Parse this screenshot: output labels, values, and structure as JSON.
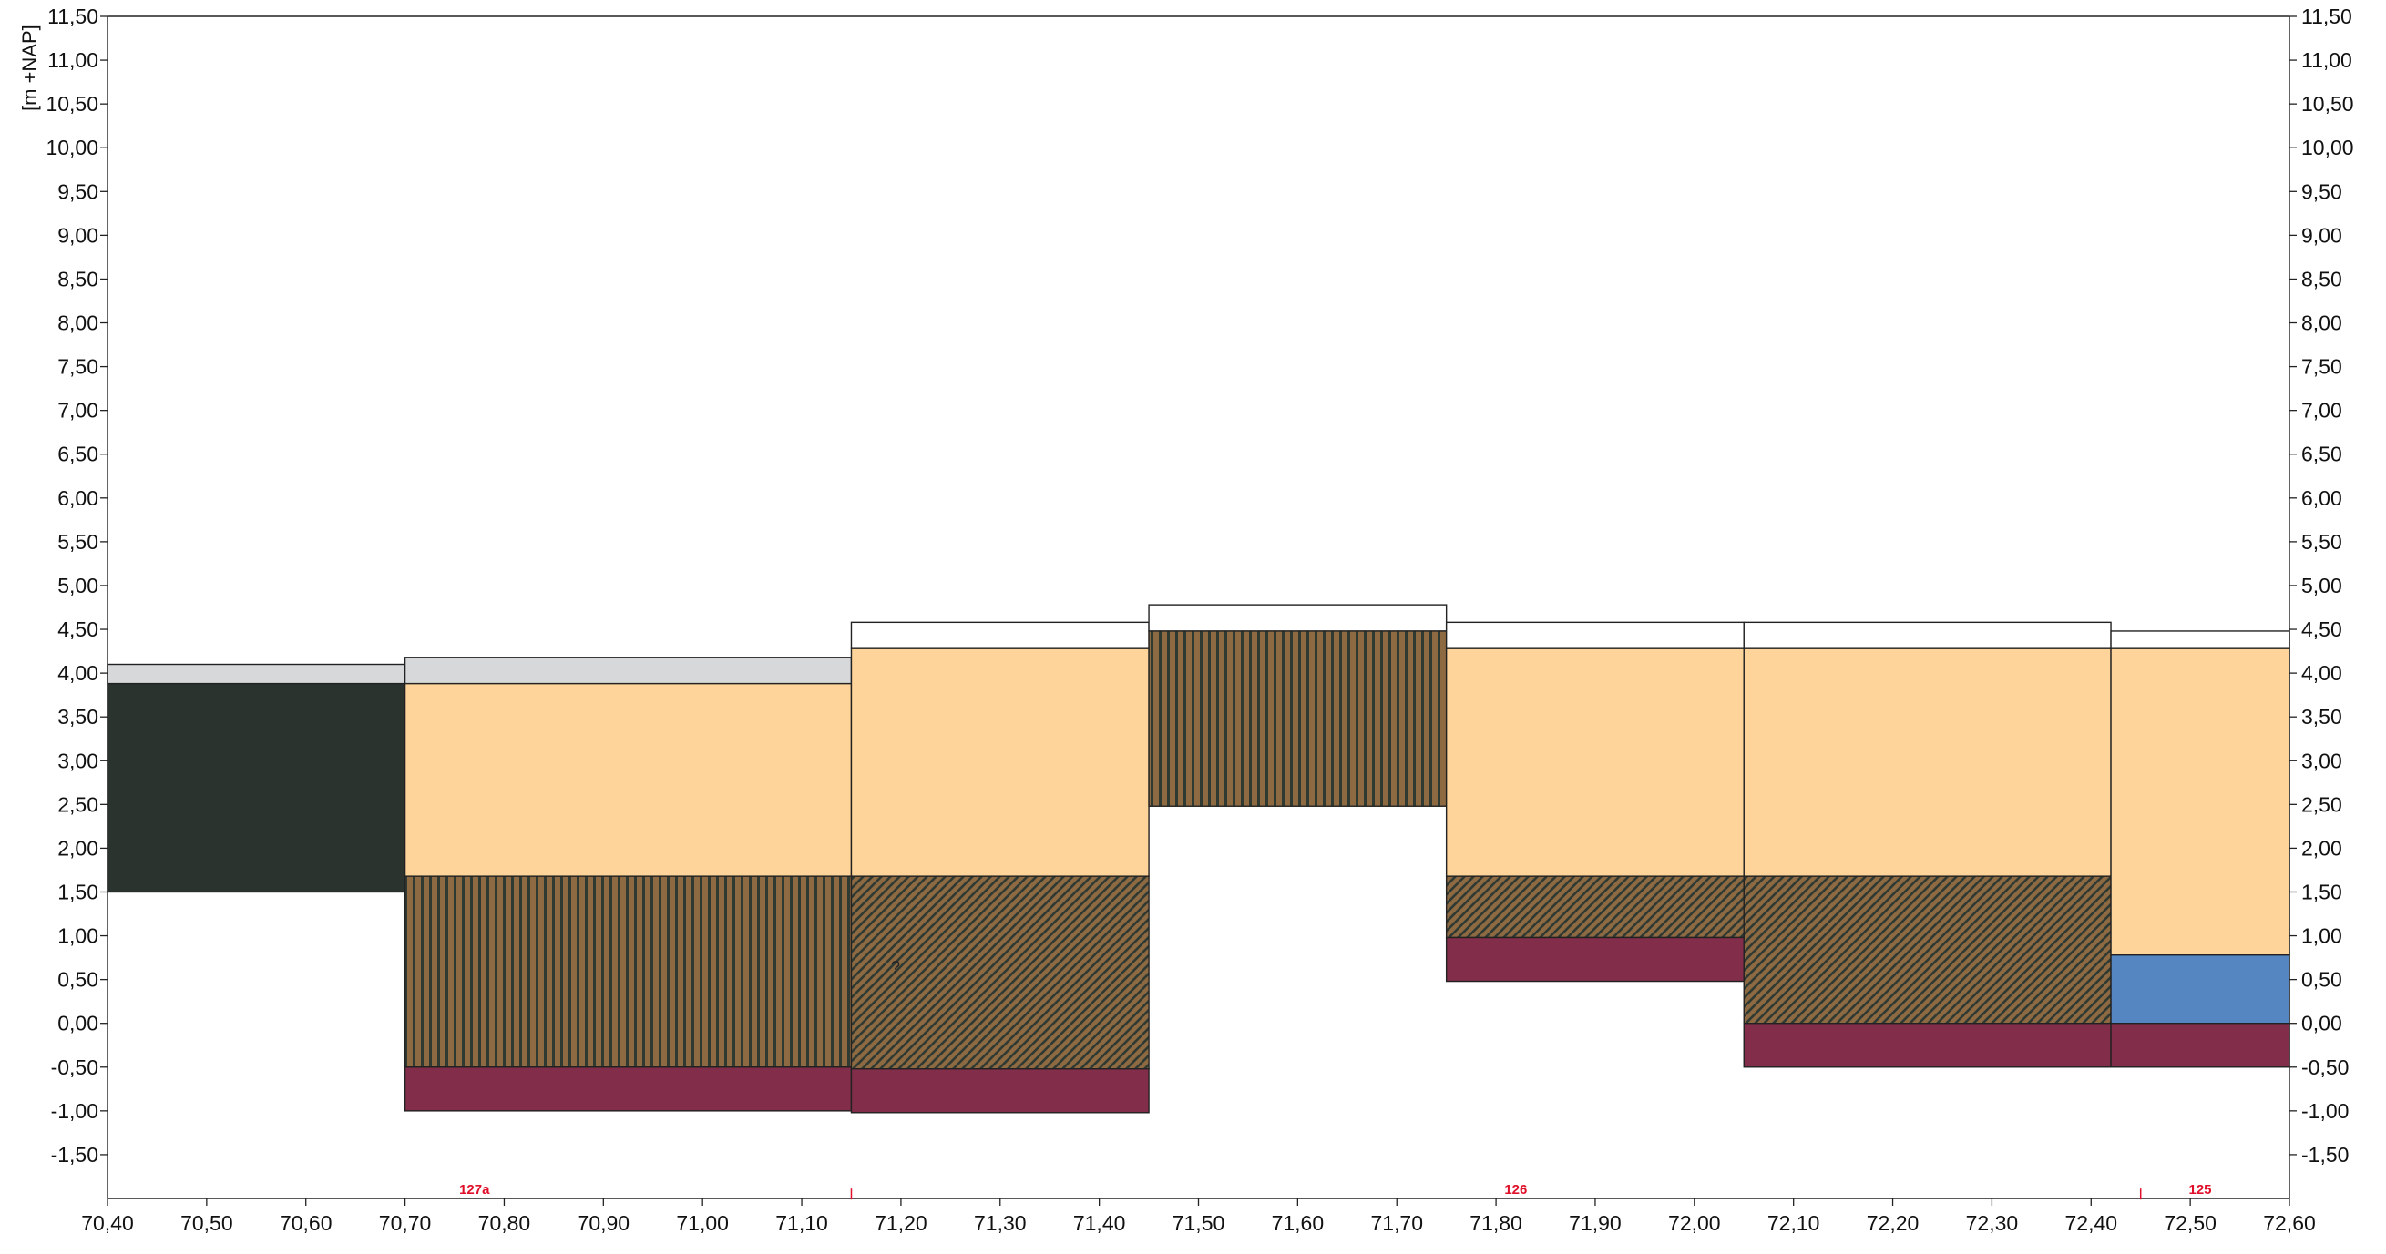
{
  "chart_data": {
    "type": "bar",
    "subtype": "soil-cross-section",
    "title": "",
    "xlabel": "",
    "ylabel": "[m +NAP]",
    "xlim": [
      70.4,
      72.6
    ],
    "ylim": [
      -2.0,
      11.5
    ],
    "x_ticks": [
      "70,40",
      "70,50",
      "70,60",
      "70,70",
      "70,80",
      "70,90",
      "71,00",
      "71,10",
      "71,20",
      "71,30",
      "71,40",
      "71,50",
      "71,60",
      "71,70",
      "71,80",
      "71,90",
      "72,00",
      "72,10",
      "72,20",
      "72,30",
      "72,40",
      "72,50",
      "72,60"
    ],
    "y_ticks": [
      "11,50",
      "11,00",
      "10,50",
      "10,00",
      "9,50",
      "9,00",
      "8,50",
      "8,00",
      "7,50",
      "7,00",
      "6,50",
      "6,00",
      "5,50",
      "5,00",
      "4,50",
      "4,00",
      "3,50",
      "3,00",
      "2,50",
      "2,00",
      "1,50",
      "1,00",
      "0,50",
      "0,00",
      "-0,50",
      "-1,00",
      "-1,50"
    ],
    "grid": false,
    "legend": "none",
    "colors": {
      "fill_white": "#ffffff",
      "fill_gray": "#d6d8d9",
      "fill_dark": "#2a332e",
      "fill_sand": "#ffd49a",
      "fill_peat": "#8e6a42",
      "fill_clay_red": "#822d4a",
      "fill_blue": "#5686c2",
      "hatch_line": "#2f3a33",
      "marker_red": "#e0102a"
    },
    "columns": [
      {
        "x0": 70.4,
        "x1": 70.7,
        "layers": [
          {
            "top": 4.1,
            "bottom": 3.88,
            "fill": "fill_gray",
            "pattern": "none"
          },
          {
            "top": 3.88,
            "bottom": 1.5,
            "fill": "fill_dark",
            "pattern": "none"
          }
        ]
      },
      {
        "x0": 70.7,
        "x1": 71.15,
        "layers": [
          {
            "top": 4.18,
            "bottom": 3.88,
            "fill": "fill_gray",
            "pattern": "none"
          },
          {
            "top": 3.88,
            "bottom": 1.68,
            "fill": "fill_sand",
            "pattern": "none"
          },
          {
            "top": 1.68,
            "bottom": -0.5,
            "fill": "fill_peat",
            "pattern": "vertical"
          },
          {
            "top": -0.5,
            "bottom": -1.0,
            "fill": "fill_clay_red",
            "pattern": "none"
          }
        ]
      },
      {
        "x0": 71.15,
        "x1": 71.45,
        "layers": [
          {
            "top": 4.58,
            "bottom": 4.28,
            "fill": "fill_white",
            "pattern": "none"
          },
          {
            "top": 4.28,
            "bottom": 1.68,
            "fill": "fill_sand",
            "pattern": "none"
          },
          {
            "top": 1.68,
            "bottom": -0.52,
            "fill": "fill_peat",
            "pattern": "diagonal"
          },
          {
            "top": -0.52,
            "bottom": -1.02,
            "fill": "fill_clay_red",
            "pattern": "none"
          }
        ]
      },
      {
        "x0": 71.45,
        "x1": 71.75,
        "layers": [
          {
            "top": 4.78,
            "bottom": 4.48,
            "fill": "fill_white",
            "pattern": "none"
          },
          {
            "top": 4.48,
            "bottom": 2.48,
            "fill": "fill_peat",
            "pattern": "vertical"
          }
        ]
      },
      {
        "x0": 71.75,
        "x1": 72.05,
        "layers": [
          {
            "top": 4.58,
            "bottom": 4.28,
            "fill": "fill_white",
            "pattern": "none"
          },
          {
            "top": 4.28,
            "bottom": 1.68,
            "fill": "fill_sand",
            "pattern": "none"
          },
          {
            "top": 1.68,
            "bottom": 0.98,
            "fill": "fill_peat",
            "pattern": "diagonal"
          },
          {
            "top": 0.98,
            "bottom": 0.48,
            "fill": "fill_clay_red",
            "pattern": "none"
          }
        ]
      },
      {
        "x0": 72.05,
        "x1": 72.42,
        "layers": [
          {
            "top": 4.58,
            "bottom": 4.28,
            "fill": "fill_white",
            "pattern": "none"
          },
          {
            "top": 4.28,
            "bottom": 1.68,
            "fill": "fill_sand",
            "pattern": "none"
          },
          {
            "top": 1.68,
            "bottom": 0.0,
            "fill": "fill_peat",
            "pattern": "diagonal"
          },
          {
            "top": 0.0,
            "bottom": -0.5,
            "fill": "fill_clay_red",
            "pattern": "none"
          }
        ]
      },
      {
        "x0": 72.42,
        "x1": 72.6,
        "layers": [
          {
            "top": 4.48,
            "bottom": 4.28,
            "fill": "fill_white",
            "pattern": "none"
          },
          {
            "top": 4.28,
            "bottom": 0.78,
            "fill": "fill_sand",
            "pattern": "none"
          },
          {
            "top": 0.78,
            "bottom": 0.0,
            "fill": "fill_blue",
            "pattern": "none"
          },
          {
            "top": 0.0,
            "bottom": -0.5,
            "fill": "fill_clay_red",
            "pattern": "none"
          }
        ]
      }
    ],
    "annotations": [
      {
        "text": "?",
        "x": 71.19,
        "y": 0.58
      }
    ],
    "markers": [
      {
        "label": "127a",
        "x": 70.77
      },
      {
        "label": "126",
        "x": 71.82
      },
      {
        "label": "125",
        "x": 72.51
      }
    ],
    "ticks_minor": [
      71.15,
      72.45
    ]
  }
}
